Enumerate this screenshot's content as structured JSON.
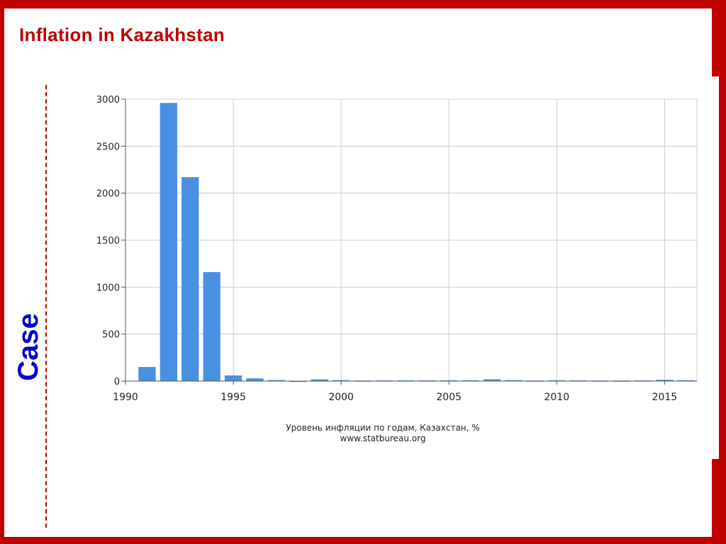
{
  "slide": {
    "title": "Inflation in Kazakhstan",
    "side_label": "Case"
  },
  "colors": {
    "frame": "#c00000",
    "title": "#c00000",
    "side_label": "#0000cc",
    "bar": "#4a90e2",
    "grid": "#cccccc"
  },
  "chart_data": {
    "type": "bar",
    "title": "",
    "xlabel": "",
    "ylabel": "",
    "caption_line1": "Уровень инфляции по годам, Казахстан, %",
    "caption_line2": "www.statbureau.org",
    "xlim": [
      1990,
      2016.5
    ],
    "ylim": [
      0,
      3000
    ],
    "x_ticks": [
      1990,
      1995,
      2000,
      2005,
      2010,
      2015
    ],
    "y_ticks": [
      0,
      500,
      1000,
      1500,
      2000,
      2500,
      3000
    ],
    "grid": true,
    "x": [
      1991,
      1992,
      1993,
      1994,
      1995,
      1996,
      1997,
      1998,
      1999,
      2000,
      2001,
      2002,
      2003,
      2004,
      2005,
      2006,
      2007,
      2008,
      2009,
      2010,
      2011,
      2012,
      2013,
      2014,
      2015,
      2016
    ],
    "values": [
      150,
      2960,
      2170,
      1160,
      60,
      29,
      11,
      2,
      18,
      10,
      6,
      7,
      7,
      7,
      8,
      9,
      19,
      10,
      6,
      8,
      7,
      6,
      5,
      7,
      14,
      9
    ]
  }
}
